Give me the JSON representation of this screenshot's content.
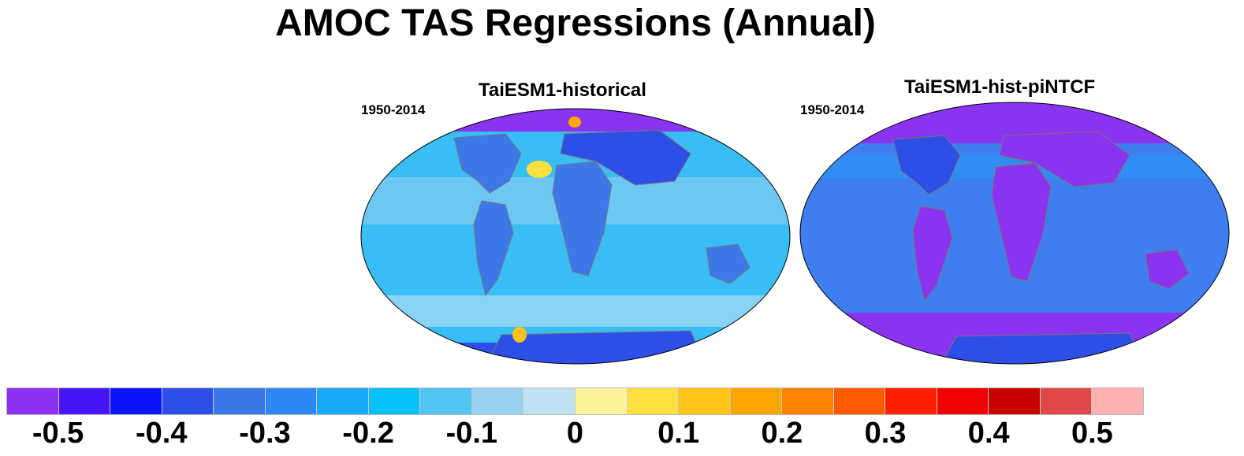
{
  "title": "AMOC TAS Regressions (Annual)",
  "panels": [
    {
      "title": "TaiESM1-historical",
      "period": "1950-2014",
      "ocean_color": "#38bdf5",
      "land_color": "#3d78e8",
      "arctic_color": "#8a33f0"
    },
    {
      "title": "TaiESM1-hist-piNTCF",
      "period": "1950-2014",
      "ocean_color": "#3e7ef0",
      "land_color": "#8a33f0",
      "arctic_color": "#8a33f0"
    }
  ],
  "colorbar": {
    "colors": [
      "#8b2ff0",
      "#4614f5",
      "#0a14f8",
      "#2e4ee8",
      "#3a78e8",
      "#2b88f5",
      "#17a8f8",
      "#06c0f8",
      "#52c4f2",
      "#98d0f0",
      "#bfe2f5",
      "#fff39a",
      "#ffe040",
      "#ffc41a",
      "#ffa500",
      "#ff8200",
      "#ff5a00",
      "#ff2000",
      "#f00000",
      "#c80000",
      "#e04848",
      "#ffb0b0"
    ],
    "labels": [
      "-0.5",
      "-0.4",
      "-0.3",
      "-0.2",
      "-0.1",
      "0",
      "0.1",
      "0.2",
      "0.3",
      "0.4",
      "0.5"
    ]
  },
  "icons": {
    "map_projection": "robinson-world-map"
  }
}
